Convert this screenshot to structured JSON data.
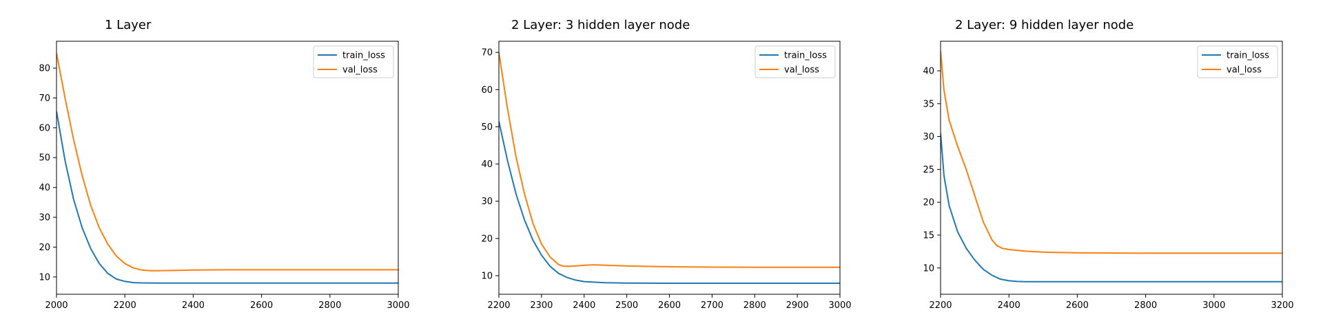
{
  "colors": {
    "train": "#1f77b4",
    "val": "#ff7f0e",
    "axis": "#000000",
    "background": "#ffffff"
  },
  "chart_data": [
    {
      "type": "line",
      "title": "1 Layer",
      "xlabel": "",
      "ylabel": "",
      "xlim": [
        2000,
        3000
      ],
      "ylim": [
        4.2,
        89
      ],
      "xticks": [
        2000,
        2200,
        2400,
        2600,
        2800,
        3000
      ],
      "yticks": [
        10,
        20,
        30,
        40,
        50,
        60,
        70,
        80
      ],
      "grid": false,
      "legend_position": "top-right",
      "series": [
        {
          "name": "train_loss",
          "color": "#1f77b4",
          "x": [
            2000,
            2025,
            2050,
            2075,
            2100,
            2125,
            2150,
            2175,
            2200,
            2225,
            2250,
            2300,
            2400,
            2600,
            2800,
            3000
          ],
          "y": [
            65.5,
            49,
            36,
            26.5,
            19.5,
            14.5,
            11.2,
            9.3,
            8.5,
            8.1,
            8.0,
            7.95,
            7.95,
            7.95,
            7.95,
            7.95
          ]
        },
        {
          "name": "val_loss",
          "color": "#ff7f0e",
          "x": [
            2000,
            2025,
            2050,
            2075,
            2100,
            2125,
            2150,
            2175,
            2200,
            2225,
            2250,
            2275,
            2300,
            2350,
            2400,
            2500,
            2600,
            2800,
            3000
          ],
          "y": [
            85,
            70,
            56,
            44,
            34,
            26.5,
            21,
            17,
            14.5,
            13,
            12.3,
            12.1,
            12.1,
            12.2,
            12.3,
            12.4,
            12.4,
            12.4,
            12.4
          ]
        }
      ]
    },
    {
      "type": "line",
      "title": "2 Layer: 3 hidden layer node",
      "xlabel": "",
      "ylabel": "",
      "xlim": [
        2200,
        3000
      ],
      "ylim": [
        5,
        73
      ],
      "xticks": [
        2200,
        2300,
        2400,
        2500,
        2600,
        2700,
        2800,
        2900,
        3000
      ],
      "yticks": [
        10,
        20,
        30,
        40,
        50,
        60,
        70
      ],
      "grid": false,
      "legend_position": "top-right",
      "series": [
        {
          "name": "train_loss",
          "color": "#1f77b4",
          "x": [
            2200,
            2220,
            2240,
            2260,
            2280,
            2300,
            2320,
            2340,
            2360,
            2380,
            2400,
            2450,
            2500,
            2600,
            2800,
            3000
          ],
          "y": [
            51.5,
            41,
            32,
            25,
            19.5,
            15.5,
            12.5,
            10.6,
            9.5,
            8.8,
            8.4,
            8.1,
            8.0,
            7.95,
            7.95,
            7.95
          ]
        },
        {
          "name": "val_loss",
          "color": "#ff7f0e",
          "x": [
            2200,
            2220,
            2240,
            2260,
            2280,
            2300,
            2320,
            2340,
            2350,
            2360,
            2380,
            2400,
            2420,
            2450,
            2500,
            2600,
            2700,
            2800,
            2900,
            3000
          ],
          "y": [
            70,
            55,
            42,
            32,
            24,
            18.5,
            15,
            13,
            12.6,
            12.5,
            12.6,
            12.8,
            12.9,
            12.8,
            12.6,
            12.4,
            12.3,
            12.25,
            12.25,
            12.25
          ]
        }
      ]
    },
    {
      "type": "line",
      "title": "2 Layer: 9 hidden layer node",
      "xlabel": "",
      "ylabel": "",
      "xlim": [
        2200,
        3200
      ],
      "ylim": [
        6,
        44.5
      ],
      "xticks": [
        2200,
        2400,
        2600,
        2800,
        3000,
        3200
      ],
      "yticks": [
        10,
        15,
        20,
        25,
        30,
        35,
        40
      ],
      "grid": false,
      "legend_position": "top-right",
      "series": [
        {
          "name": "train_loss",
          "color": "#1f77b4",
          "x": [
            2200,
            2210,
            2225,
            2250,
            2275,
            2300,
            2325,
            2350,
            2375,
            2400,
            2425,
            2450,
            2500,
            2600,
            2800,
            3000,
            3200
          ],
          "y": [
            30.5,
            24,
            19.5,
            15.5,
            13,
            11.2,
            9.8,
            8.9,
            8.3,
            8.05,
            7.95,
            7.9,
            7.9,
            7.9,
            7.9,
            7.9,
            7.9
          ]
        },
        {
          "name": "val_loss",
          "color": "#ff7f0e",
          "x": [
            2200,
            2210,
            2225,
            2250,
            2275,
            2300,
            2325,
            2350,
            2365,
            2380,
            2400,
            2450,
            2500,
            2600,
            2800,
            3000,
            3200
          ],
          "y": [
            43,
            37,
            32.5,
            28.5,
            25,
            21,
            17,
            14.3,
            13.4,
            13.0,
            12.8,
            12.55,
            12.4,
            12.3,
            12.25,
            12.25,
            12.25
          ]
        }
      ]
    }
  ]
}
